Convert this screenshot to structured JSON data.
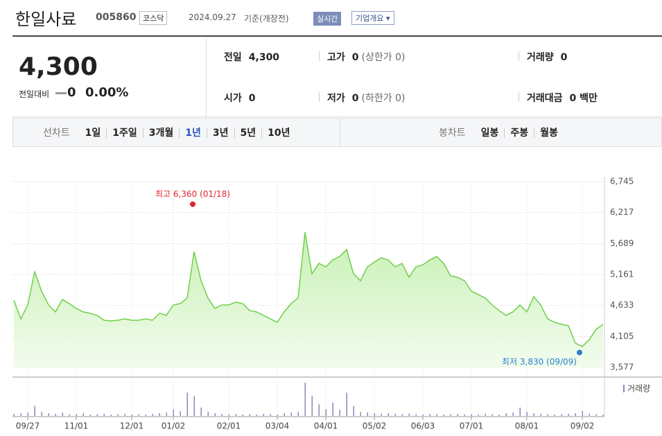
{
  "header": {
    "name": "한일사료",
    "code": "005860",
    "market": "코스닥",
    "date": "2024.09.27",
    "basis": "기준(개장전)",
    "buttons": [
      "실시간",
      "기업개요"
    ]
  },
  "quote": {
    "price": "4,300",
    "change_label": "전일대비",
    "change": "0",
    "change_pct": "0.00%",
    "stats": [
      {
        "label": "전일",
        "value": "4,300"
      },
      {
        "label": "고가",
        "value": "0",
        "sub": "(상한가 0)"
      },
      {
        "label": "거래량",
        "value": "0"
      },
      {
        "label": "시가",
        "value": "0"
      },
      {
        "label": "저가",
        "value": "0",
        "sub": "(하한가 0)"
      },
      {
        "label": "거래대금",
        "value": "0 백만"
      }
    ]
  },
  "periods": {
    "line_label": "선차트",
    "line": [
      "1일",
      "1주일",
      "3개월",
      "1년",
      "3년",
      "5년",
      "10년"
    ],
    "selected": "1년",
    "candle_label": "봉차트",
    "candle": [
      "일봉",
      "주봉",
      "월봉"
    ]
  },
  "chart_data": {
    "type": "line",
    "color": "#6fcf4a",
    "grid": true,
    "categories": [
      null,
      null,
      "09/27",
      null,
      null,
      null,
      null,
      null,
      null,
      "11/01",
      null,
      null,
      null,
      null,
      null,
      null,
      null,
      "12/01",
      null,
      null,
      null,
      null,
      null,
      "01/02",
      null,
      null,
      null,
      null,
      null,
      null,
      null,
      "02/01",
      null,
      null,
      null,
      null,
      null,
      null,
      "03/04",
      null,
      null,
      null,
      null,
      null,
      null,
      "04/01",
      null,
      null,
      null,
      null,
      null,
      null,
      "05/02",
      null,
      null,
      null,
      null,
      null,
      null,
      "06/03",
      null,
      null,
      null,
      null,
      null,
      null,
      "07/01",
      null,
      null,
      null,
      null,
      null,
      null,
      null,
      "08/01",
      null,
      null,
      null,
      null,
      null,
      null,
      null,
      "09/02",
      null,
      null,
      null
    ],
    "values": [
      4724,
      4405,
      4641,
      5208,
      4878,
      4641,
      4523,
      4736,
      4665,
      4582,
      4523,
      4500,
      4464,
      4381,
      4369,
      4381,
      4405,
      4381,
      4381,
      4405,
      4381,
      4500,
      4464,
      4641,
      4665,
      4760,
      5550,
      5055,
      4760,
      4582,
      4641,
      4641,
      4689,
      4665,
      4547,
      4523,
      4464,
      4405,
      4346,
      4523,
      4665,
      4760,
      5882,
      5173,
      5350,
      5291,
      5409,
      5468,
      5586,
      5173,
      5055,
      5291,
      5374,
      5445,
      5409,
      5291,
      5350,
      5114,
      5291,
      5327,
      5409,
      5468,
      5350,
      5138,
      5114,
      5055,
      4878,
      4819,
      4760,
      4641,
      4547,
      4464,
      4523,
      4641,
      4523,
      4783,
      4641,
      4405,
      4346,
      4310,
      4287,
      3991,
      3932,
      4050,
      4228,
      4310
    ],
    "ylim": [
      3577,
      6745
    ],
    "yticks": [
      {
        "value": 3577,
        "label": "3,577"
      },
      {
        "value": 4105,
        "label": "4,105"
      },
      {
        "value": 4633,
        "label": "4,633"
      },
      {
        "value": 5161,
        "label": "5,161"
      },
      {
        "value": 5689,
        "label": "5,689"
      },
      {
        "value": 6217,
        "label": "6,217"
      },
      {
        "value": 6745,
        "label": "6,745"
      }
    ],
    "annotations": [
      {
        "text": "최고 6,360 (01/18)",
        "value": 6360,
        "color": "#e0262c"
      },
      {
        "text": "최저 3,830 (09/09)",
        "value": 3830,
        "color": "#2a7fd0"
      }
    ],
    "volume": {
      "name": "거래량",
      "color": "#8a87b8",
      "ylim": [
        0,
        100
      ],
      "values": [
        6,
        8,
        10,
        30,
        12,
        8,
        6,
        10,
        5,
        6,
        8,
        4,
        5,
        6,
        4,
        5,
        6,
        4,
        5,
        4,
        6,
        8,
        10,
        20,
        14,
        70,
        60,
        25,
        12,
        8,
        6,
        5,
        6,
        4,
        5,
        4,
        6,
        5,
        4,
        8,
        10,
        12,
        100,
        60,
        35,
        20,
        40,
        18,
        70,
        30,
        12,
        10,
        8,
        6,
        8,
        6,
        5,
        7,
        5,
        4,
        6,
        5,
        4,
        5,
        6,
        4,
        5,
        4,
        6,
        5,
        4,
        8,
        10,
        25,
        12,
        8,
        6,
        5,
        4,
        5,
        6,
        8,
        15,
        6,
        5,
        4
      ]
    }
  }
}
